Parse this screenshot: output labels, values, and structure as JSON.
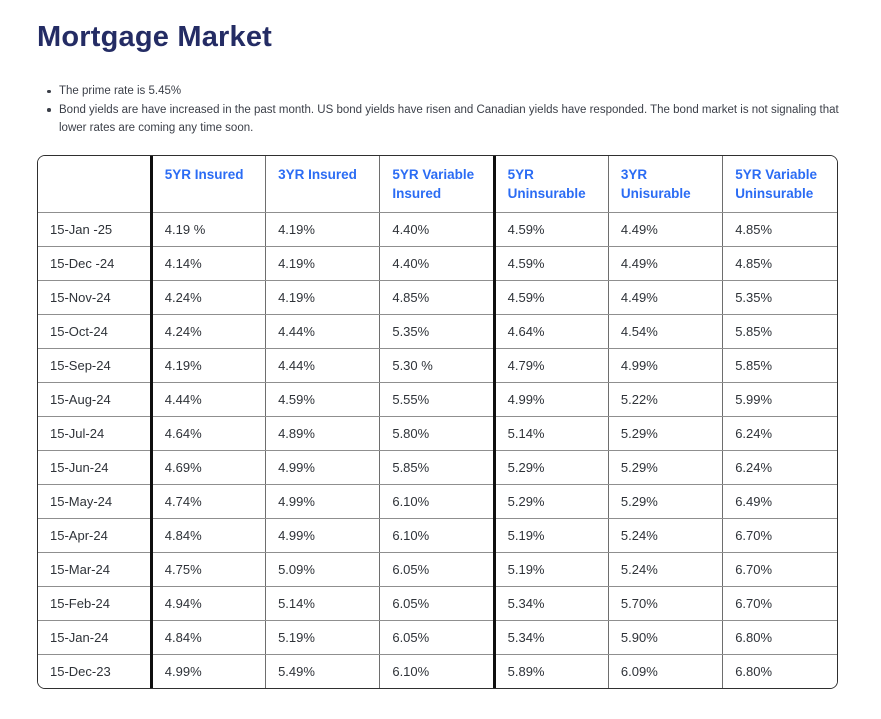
{
  "page": {
    "title": "Mortgage Market",
    "bullets": [
      "The prime rate is 5.45%",
      "Bond yields are have increased in the past month. US bond yields have risen and Canadian yields have responded. The bond market is not signaling that lower rates are coming any time soon."
    ]
  },
  "colors": {
    "title_navy": "#242c64",
    "header_blue": "#2b6cf4",
    "body_text": "#3b3f48",
    "cell_text": "#2e3238",
    "outer_border": "#2f2f2f",
    "thick_divider": "#0f0f0f",
    "row_border": "#8f8f8f",
    "column_border": "#6e6e6e"
  },
  "chart_data": {
    "type": "table",
    "columns": [
      "",
      "5YR Insured",
      "3YR Insured",
      "5YR Variable Insured",
      "5YR Uninsurable",
      "3YR Unisurable",
      "5YR Variable Uninsurable"
    ],
    "rows": [
      [
        "15-Jan -25",
        "4.19 %",
        "4.19%",
        "4.40%",
        "4.59%",
        "4.49%",
        "4.85%"
      ],
      [
        "15-Dec -24",
        "4.14%",
        "4.19%",
        "4.40%",
        "4.59%",
        "4.49%",
        "4.85%"
      ],
      [
        "15-Nov-24",
        "4.24%",
        "4.19%",
        "4.85%",
        "4.59%",
        "4.49%",
        "5.35%"
      ],
      [
        "15-Oct-24",
        "4.24%",
        "4.44%",
        "5.35%",
        "4.64%",
        "4.54%",
        "5.85%"
      ],
      [
        "15-Sep-24",
        "4.19%",
        "4.44%",
        "5.30 %",
        "4.79%",
        "4.99%",
        "5.85%"
      ],
      [
        "15-Aug-24",
        "4.44%",
        "4.59%",
        "5.55%",
        "4.99%",
        "5.22%",
        "5.99%"
      ],
      [
        "15-Jul-24",
        "4.64%",
        "4.89%",
        "5.80%",
        "5.14%",
        "5.29%",
        "6.24%"
      ],
      [
        "15-Jun-24",
        "4.69%",
        "4.99%",
        "5.85%",
        "5.29%",
        "5.29%",
        "6.24%"
      ],
      [
        "15-May-24",
        "4.74%",
        "4.99%",
        "6.10%",
        "5.29%",
        "5.29%",
        "6.49%"
      ],
      [
        "15-Apr-24",
        "4.84%",
        "4.99%",
        "6.10%",
        "5.19%",
        "5.24%",
        "6.70%"
      ],
      [
        "15-Mar-24",
        "4.75%",
        "5.09%",
        "6.05%",
        "5.19%",
        "5.24%",
        "6.70%"
      ],
      [
        "15-Feb-24",
        "4.94%",
        "5.14%",
        "6.05%",
        "5.34%",
        "5.70%",
        "6.70%"
      ],
      [
        "15-Jan-24",
        "4.84%",
        "5.19%",
        "6.05%",
        "5.34%",
        "5.90%",
        "6.80%"
      ],
      [
        "15-Dec-23",
        "4.99%",
        "5.49%",
        "6.10%",
        "5.89%",
        "6.09%",
        "6.80%"
      ]
    ]
  }
}
